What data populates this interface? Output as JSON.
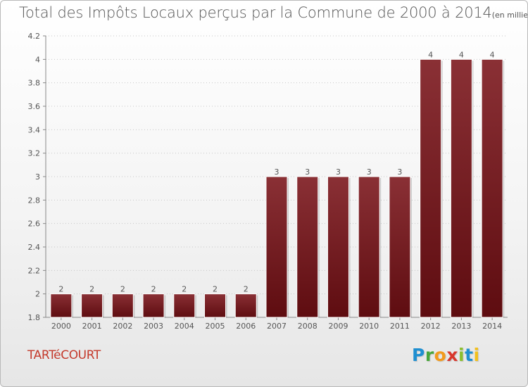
{
  "chart_data": {
    "type": "bar",
    "title": "Total des Impôts Locaux perçus par la Commune de 2000 à 2014",
    "unit_label": "(en milliers d'€)",
    "categories": [
      "2000",
      "2001",
      "2002",
      "2003",
      "2004",
      "2005",
      "2006",
      "2007",
      "2008",
      "2009",
      "2010",
      "2011",
      "2012",
      "2013",
      "2014"
    ],
    "values": [
      2,
      2,
      2,
      2,
      2,
      2,
      2,
      3,
      3,
      3,
      3,
      3,
      4,
      4,
      4
    ],
    "value_labels": [
      "2",
      "2",
      "2",
      "2",
      "2",
      "2",
      "2",
      "3",
      "3",
      "3",
      "3",
      "3",
      "4",
      "4",
      "4"
    ],
    "ylim": [
      1.8,
      4.2
    ],
    "yticks": [
      1.8,
      2,
      2.2,
      2.4,
      2.6,
      2.8,
      3,
      3.2,
      3.4,
      3.6,
      3.8,
      4,
      4.2
    ],
    "ytick_labels": [
      "1.8",
      "2",
      "2.2",
      "2.4",
      "2.6",
      "2.8",
      "3",
      "3.2",
      "3.4",
      "3.6",
      "3.8",
      "4",
      "4.2"
    ],
    "xlabel": "",
    "ylabel": "",
    "bar_color": "#5e0c10",
    "bar_color_light": "#8a3035"
  },
  "commune_name": "TARTéCOURT",
  "logo": {
    "letters": [
      "P",
      "r",
      "o",
      "x",
      "i",
      "t",
      "i"
    ]
  }
}
